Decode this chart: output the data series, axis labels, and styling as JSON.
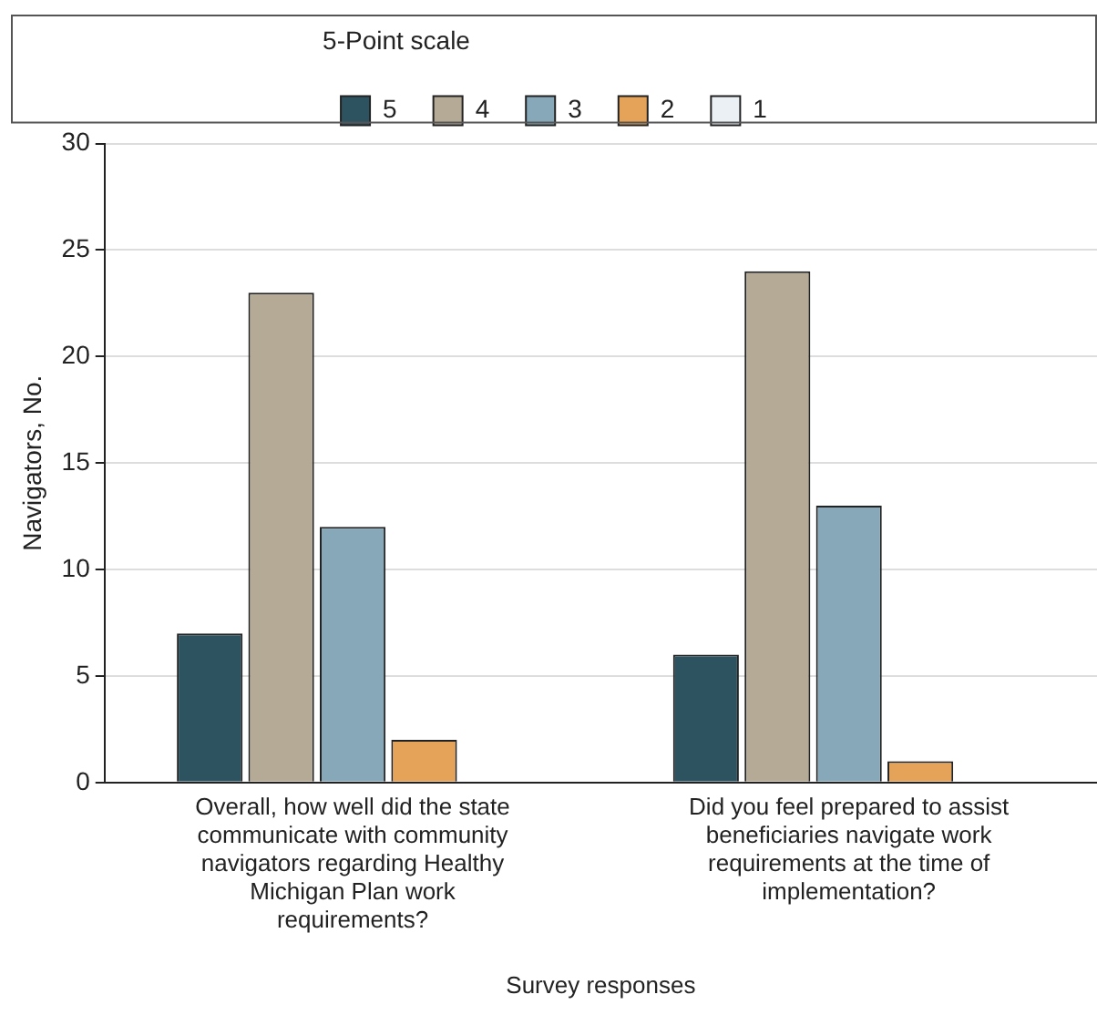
{
  "chart_data": {
    "type": "bar",
    "xlabel": "Survey responses",
    "ylabel": "Navigators, No.",
    "legend_title": "5-Point scale",
    "categories": [
      "Overall, how well did the state communicate with community navigators regarding Healthy Michigan Plan work requirements?",
      "Did you feel prepared to assist beneficiaries navigate work requirements at the time of implementation?"
    ],
    "series": [
      {
        "name": "5",
        "color": "#2d5361",
        "values": [
          7,
          6
        ]
      },
      {
        "name": "4",
        "color": "#b5aa96",
        "values": [
          23,
          24
        ]
      },
      {
        "name": "3",
        "color": "#86a8b8",
        "values": [
          12,
          13
        ]
      },
      {
        "name": "2",
        "color": "#e5a35a",
        "values": [
          2,
          1
        ]
      },
      {
        "name": "1",
        "color": "#eaf0f4",
        "values": [
          0,
          0
        ]
      }
    ],
    "ylim": [
      0,
      30
    ],
    "yticks": [
      0,
      5,
      10,
      15,
      20,
      25,
      30
    ],
    "grid": "y",
    "legend": "top"
  }
}
